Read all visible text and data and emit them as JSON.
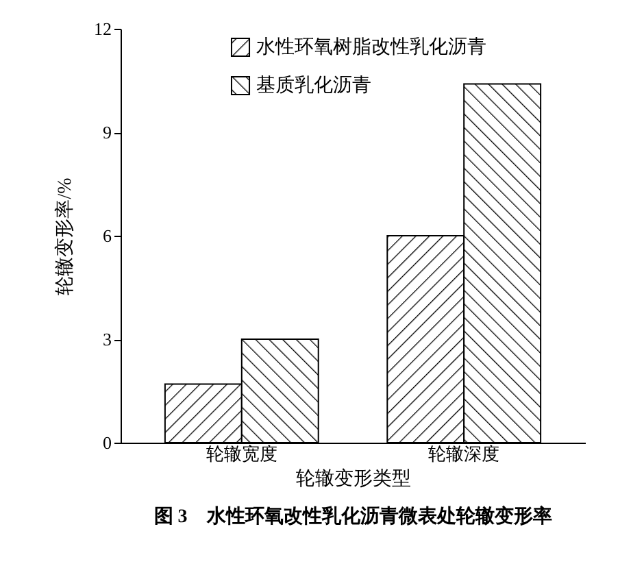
{
  "chart_data": {
    "type": "bar",
    "title": "图 3　水性环氧改性乳化沥青微表处轮辙变形率",
    "xlabel": "轮辙变形类型",
    "ylabel": "轮辙变形率/%",
    "categories": [
      "轮辙宽度",
      "轮辙深度"
    ],
    "series": [
      {
        "name": "水性环氧树脂改性乳化沥青",
        "color": "#000000",
        "values": [
          1.7,
          6.0
        ]
      },
      {
        "name": "基质乳化沥青",
        "color": "#000000",
        "values": [
          3.0,
          10.4
        ]
      }
    ],
    "ylim": [
      0,
      12
    ],
    "yticks": [
      0,
      3,
      6,
      9,
      12
    ],
    "grid": false,
    "legend": "top left"
  }
}
